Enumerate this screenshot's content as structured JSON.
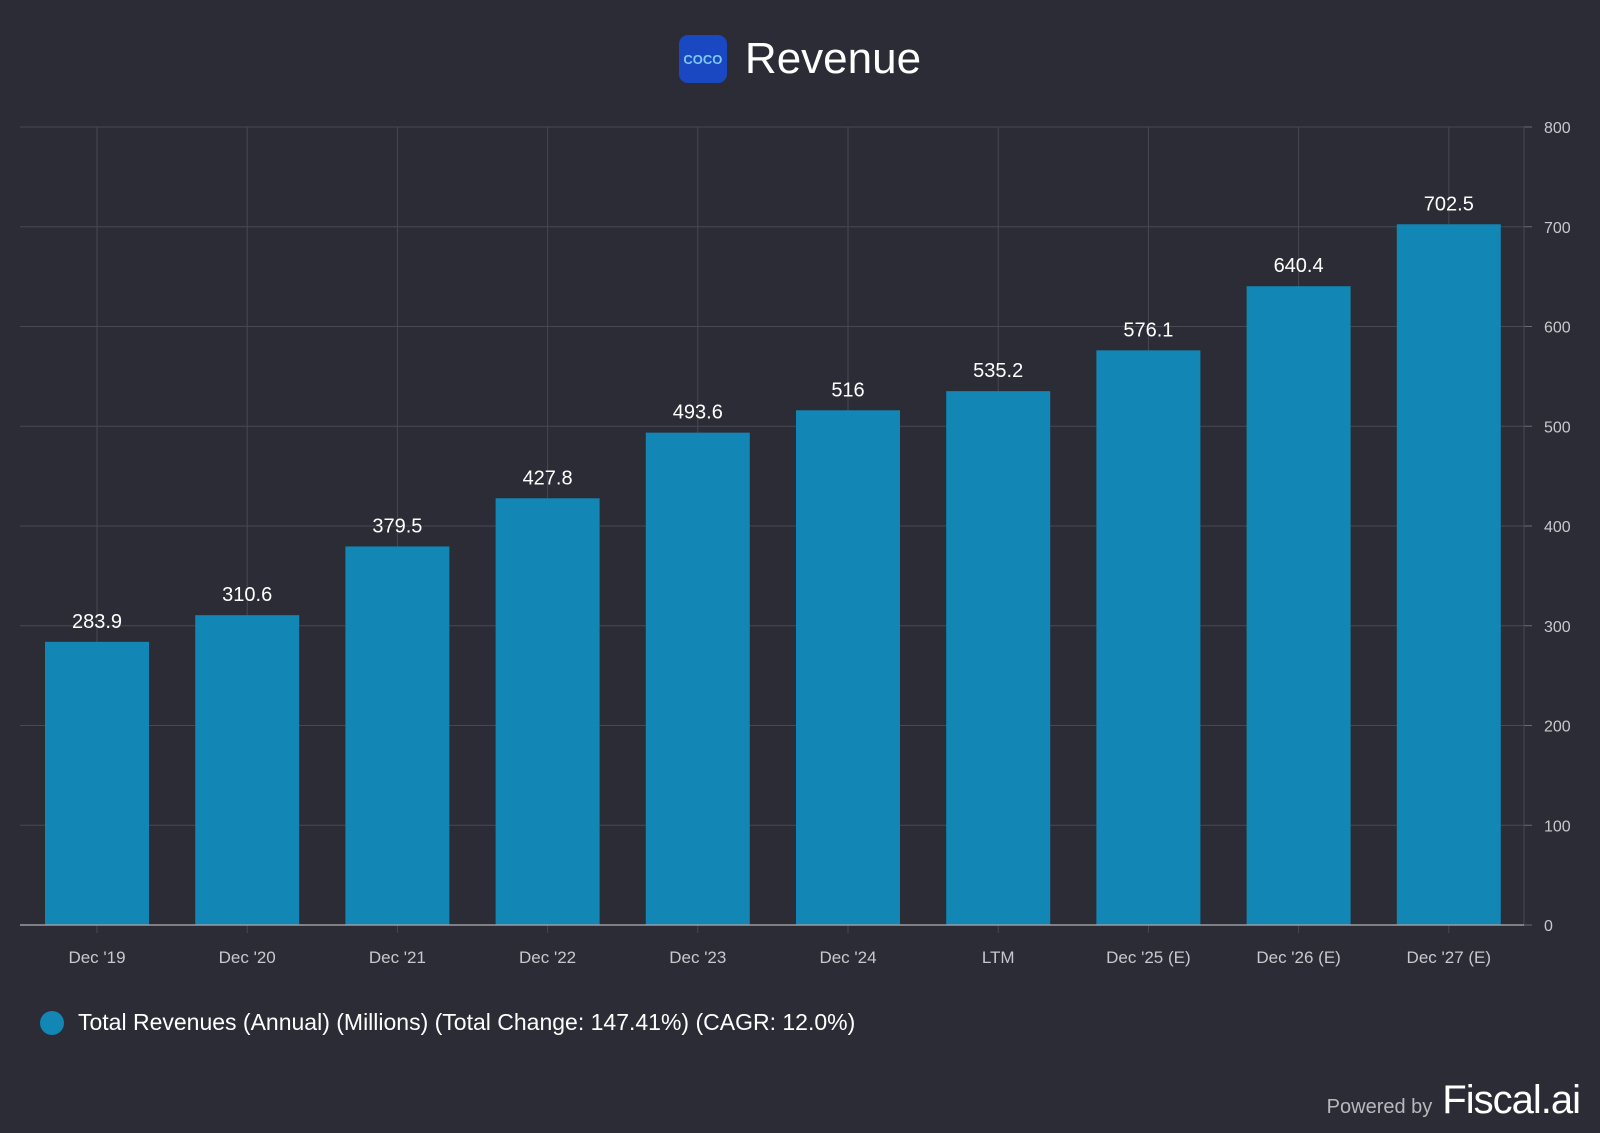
{
  "header": {
    "title": "Revenue",
    "logo_text": "COCO"
  },
  "chart_data": {
    "type": "bar",
    "title": "Revenue",
    "categories": [
      "Dec '19",
      "Dec '20",
      "Dec '21",
      "Dec '22",
      "Dec '23",
      "Dec '24",
      "LTM",
      "Dec '25 (E)",
      "Dec '26 (E)",
      "Dec '27 (E)"
    ],
    "values": [
      283.9,
      310.6,
      379.5,
      427.8,
      493.6,
      516,
      535.2,
      576.1,
      640.4,
      702.5
    ],
    "value_labels": [
      "283.9",
      "310.6",
      "379.5",
      "427.8",
      "493.6",
      "516",
      "535.2",
      "576.1",
      "640.4",
      "702.5"
    ],
    "ylim": [
      0,
      800
    ],
    "yticks": [
      0,
      100,
      200,
      300,
      400,
      500,
      600,
      700,
      800
    ],
    "y_axis_side": "right",
    "grid": true,
    "bar_color": "#1286b4",
    "legend": {
      "label": "Total Revenues (Annual) (Millions) (Total Change: 147.41%) (CAGR: 12.0%)",
      "placement": "bottom-left"
    }
  },
  "footer": {
    "powered_by": "Powered by",
    "brand": "Fiscal.ai"
  }
}
